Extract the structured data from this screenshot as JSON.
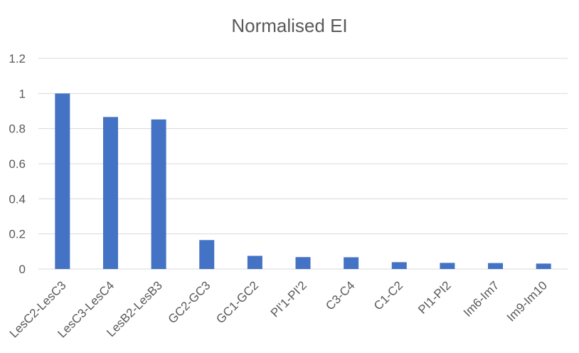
{
  "chart_data": {
    "type": "bar",
    "title": "Normalised EI",
    "xlabel": "",
    "ylabel": "",
    "categories": [
      "LesC2-LesC3",
      "LesC3-LesC4",
      "LesB2-LesB3",
      "GC2-GC3",
      "GC1-GC2",
      "PI'1-PI'2",
      "C3-C4",
      "C1-C2",
      "PI1-PI2",
      "Im6-Im7",
      "Im9-Im10"
    ],
    "values": [
      1.0,
      0.866,
      0.852,
      0.165,
      0.075,
      0.068,
      0.067,
      0.039,
      0.035,
      0.034,
      0.031
    ],
    "ylim": [
      0,
      1.2
    ],
    "yticks": [
      "0",
      "0.2",
      "0.4",
      "0.6",
      "0.8",
      "1",
      "1.2"
    ],
    "grid": true,
    "legend": "none",
    "bar_color": "#4472c4"
  }
}
